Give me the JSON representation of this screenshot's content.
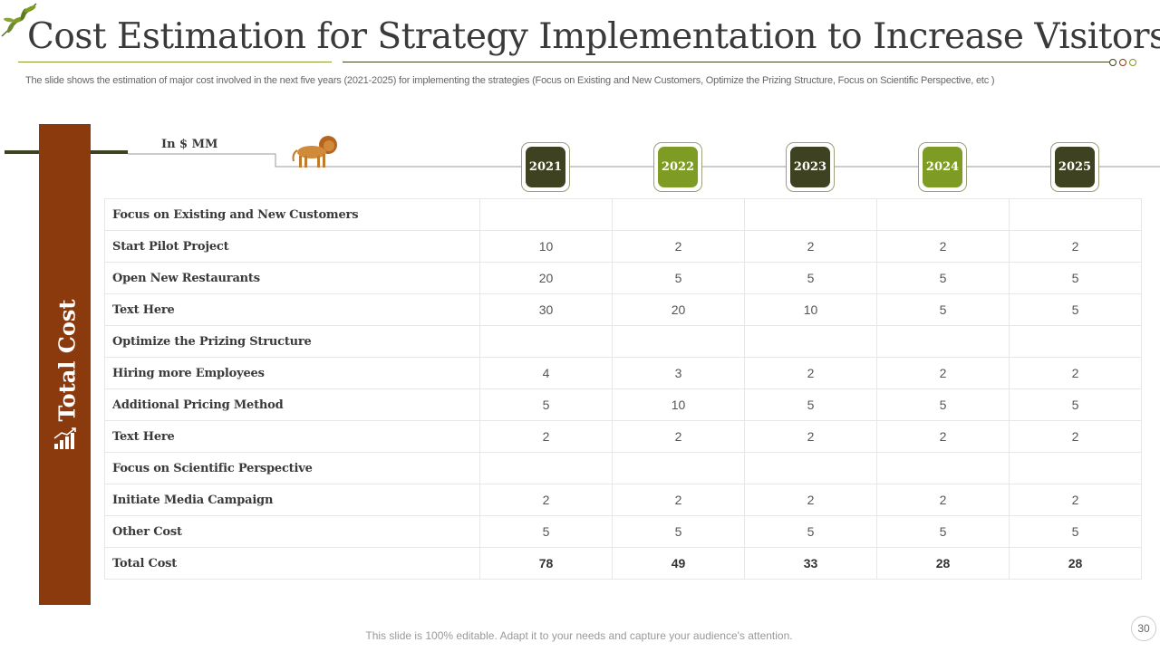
{
  "header": {
    "title": "Cost Estimation for Strategy Implementation to Increase Visitors",
    "subtitle": "The slide shows the estimation of major cost involved in the next five years (2021-2025) for implementing the strategies (Focus on Existing and New Customers, Optimize the Prizing Structure, Focus on Scientific Perspective, etc )"
  },
  "sidebar": {
    "label": "Total Cost"
  },
  "unit_label": "In $ MM",
  "years": [
    "2021",
    "2022",
    "2023",
    "2024",
    "2025"
  ],
  "rows": [
    {
      "label": "Focus on Existing and New Customers",
      "values": [
        "",
        "",
        "",
        "",
        ""
      ]
    },
    {
      "label": "Start Pilot Project",
      "values": [
        "10",
        "2",
        "2",
        "2",
        "2"
      ]
    },
    {
      "label": "Open New Restaurants",
      "values": [
        "20",
        "5",
        "5",
        "5",
        "5"
      ]
    },
    {
      "label": "Text Here",
      "values": [
        "30",
        "20",
        "10",
        "5",
        "5"
      ]
    },
    {
      "label": "Optimize the Prizing Structure",
      "values": [
        "",
        "",
        "",
        "",
        ""
      ]
    },
    {
      "label": "Hiring more Employees",
      "values": [
        "4",
        "3",
        "2",
        "2",
        "2"
      ]
    },
    {
      "label": "Additional Pricing Method",
      "values": [
        "5",
        "10",
        "5",
        "5",
        "5"
      ]
    },
    {
      "label": "Text Here",
      "values": [
        "2",
        "2",
        "2",
        "2",
        "2"
      ]
    },
    {
      "label": "Focus on Scientific Perspective",
      "values": [
        "",
        "",
        "",
        "",
        ""
      ]
    },
    {
      "label": "Initiate Media Campaign",
      "values": [
        "2",
        "2",
        "2",
        "2",
        "2"
      ]
    },
    {
      "label": "Other Cost",
      "values": [
        "5",
        "5",
        "5",
        "5",
        "5"
      ]
    },
    {
      "label": "Total Cost",
      "values": [
        "78",
        "49",
        "33",
        "28",
        "28"
      ]
    }
  ],
  "footer": {
    "text": "This slide is 100% editable. Adapt it to your needs and capture your audience's attention.",
    "page_number": "30"
  },
  "colors": {
    "dark_olive": "#3f4220",
    "green": "#7e9b24",
    "rust": "#8b3a0e"
  }
}
